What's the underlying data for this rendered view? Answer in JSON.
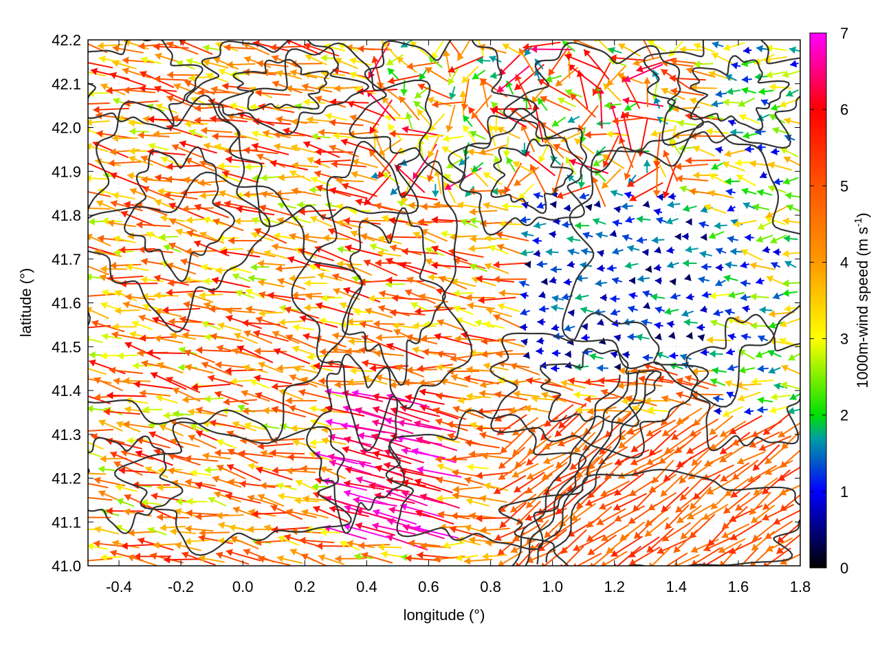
{
  "chart_data": {
    "type": "vector-field",
    "xlabel": "longitude (°)",
    "ylabel": "latitude (°)",
    "xlim": [
      -0.5,
      1.8
    ],
    "ylim": [
      41.0,
      42.2
    ],
    "x_ticks": [
      -0.4,
      -0.2,
      0.0,
      0.2,
      0.4,
      0.6,
      0.8,
      1.0,
      1.2,
      1.4,
      1.6,
      1.8
    ],
    "x_tick_labels": [
      "-0.4",
      "-0.2",
      "0.0",
      "0.2",
      "0.4",
      "0.6",
      "0.8",
      "1.0",
      "1.2",
      "1.4",
      "1.6",
      "1.8"
    ],
    "y_ticks": [
      41.0,
      41.1,
      41.2,
      41.3,
      41.4,
      41.5,
      41.6,
      41.7,
      41.8,
      41.9,
      42.0,
      42.1,
      42.2
    ],
    "y_tick_labels": [
      "41.0",
      "41.1",
      "41.2",
      "41.3",
      "41.4",
      "41.5",
      "41.6",
      "41.7",
      "41.8",
      "41.9",
      "42.0",
      "42.1",
      "42.2"
    ],
    "grid": true,
    "colorbar": {
      "label": "1000m-wind speed (m s-1)",
      "range": [
        0,
        7
      ],
      "ticks": [
        0,
        1,
        2,
        3,
        4,
        5,
        6,
        7
      ],
      "tick_labels": [
        "0",
        "1",
        "2",
        "3",
        "4",
        "5",
        "6",
        "7"
      ],
      "stops": [
        {
          "value": 0,
          "color": "#000000"
        },
        {
          "value": 1,
          "color": "#0000ff"
        },
        {
          "value": 1.7,
          "color": "#00a0a0"
        },
        {
          "value": 2,
          "color": "#00e000"
        },
        {
          "value": 3,
          "color": "#ffff00"
        },
        {
          "value": 4,
          "color": "#ff9900"
        },
        {
          "value": 5,
          "color": "#ff5500"
        },
        {
          "value": 6,
          "color": "#ff0000"
        },
        {
          "value": 7,
          "color": "#ff00ff"
        }
      ]
    },
    "wind_regions": [
      {
        "region": "west",
        "lon": [
          -0.5,
          0.4
        ],
        "lat": [
          41.0,
          42.2
        ],
        "direction": "westward",
        "speed": [
          3.5,
          6
        ]
      },
      {
        "region": "south-center",
        "lon": [
          0.3,
          0.65
        ],
        "lat": [
          41.05,
          41.4
        ],
        "direction": "north-westward",
        "speed": [
          6,
          7
        ]
      },
      {
        "region": "east-center",
        "lon": [
          0.9,
          1.5
        ],
        "lat": [
          41.45,
          41.85
        ],
        "direction": "westward",
        "speed": [
          0.3,
          1.8
        ]
      },
      {
        "region": "south-east",
        "lon": [
          0.85,
          1.8
        ],
        "lat": [
          41.0,
          41.35
        ],
        "direction": "south-westward",
        "speed": [
          4.5,
          5.5
        ]
      },
      {
        "region": "north",
        "lon": [
          0.4,
          1.4
        ],
        "lat": [
          41.85,
          42.2
        ],
        "direction": "mixed",
        "speed": [
          2,
          6
        ]
      }
    ],
    "contours": "terrain elevation contour lines (dark grey)"
  }
}
